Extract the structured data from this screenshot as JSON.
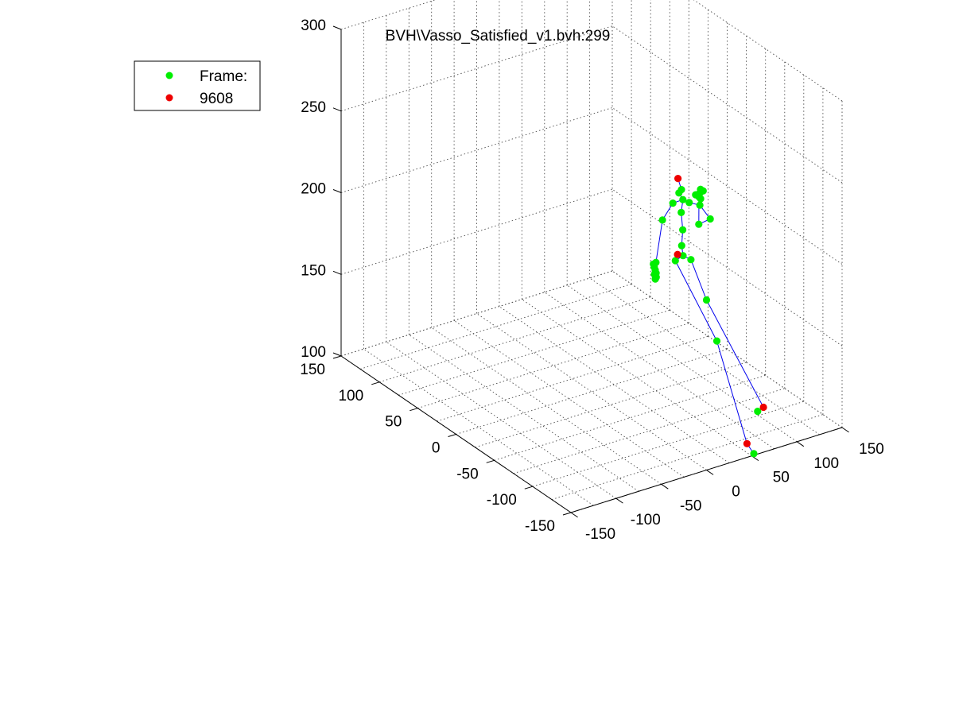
{
  "chart_data": {
    "type": "scatter",
    "title": "BVH\\Vasso_Satisfied_v1.bvh:299",
    "xlim": [
      -150,
      150
    ],
    "ylim": [
      -150,
      150
    ],
    "zlim": [
      100,
      300
    ],
    "x_ticks": [
      -150,
      -100,
      -50,
      0,
      50,
      100,
      150
    ],
    "y_ticks": [
      150,
      100,
      50,
      0,
      -50,
      -100,
      -150
    ],
    "z_ticks": [
      100,
      150,
      200,
      250,
      300
    ],
    "grid": true,
    "legend": {
      "placement": "top-left",
      "entries": [
        {
          "label": "Frame:",
          "color": "#00ee00"
        },
        {
          "label": "9608",
          "color": "#ee0000"
        }
      ]
    },
    "colors": {
      "joint": "#00ee00",
      "end_joint": "#ee0000",
      "bone": "#0000ee"
    },
    "joints": [
      {
        "id": "toe_l",
        "x": 54,
        "y": -148,
        "z": 100,
        "end": false
      },
      {
        "id": "toe_l_end",
        "x": 60,
        "y": -132,
        "z": 100,
        "end": true
      },
      {
        "id": "knee_l",
        "x": 86,
        "y": -62,
        "z": 136,
        "end": false
      },
      {
        "id": "hip_l",
        "x": 113,
        "y": 24,
        "z": 153,
        "end": false
      },
      {
        "id": "toe_r",
        "x": 104,
        "y": -94,
        "z": 100,
        "end": false
      },
      {
        "id": "toe_r_end",
        "x": 113,
        "y": -91,
        "z": 100,
        "end": true
      },
      {
        "id": "knee_r",
        "x": 111,
        "y": -19,
        "z": 143,
        "end": false
      },
      {
        "id": "hip_r",
        "x": 126,
        "y": 19,
        "z": 153,
        "end": false
      },
      {
        "id": "root",
        "x": 119,
        "y": 21,
        "z": 156,
        "end": false
      },
      {
        "id": "root_end",
        "x": 118,
        "y": 27,
        "z": 155,
        "end": true
      },
      {
        "id": "spine",
        "x": 120,
        "y": 24,
        "z": 161,
        "end": false
      },
      {
        "id": "spine1",
        "x": 122,
        "y": 25,
        "z": 170,
        "end": false
      },
      {
        "id": "chest",
        "x": 122,
        "y": 27,
        "z": 180,
        "end": false
      },
      {
        "id": "neck",
        "x": 123,
        "y": 26,
        "z": 188,
        "end": false
      },
      {
        "id": "head",
        "x": 122,
        "y": 30,
        "z": 191,
        "end": false
      },
      {
        "id": "head_b",
        "x": 124,
        "y": 29,
        "z": 193,
        "end": false
      },
      {
        "id": "head_end",
        "x": 121,
        "y": 30,
        "z": 200,
        "end": true
      },
      {
        "id": "shoulder_l",
        "x": 117,
        "y": 32,
        "z": 185,
        "end": false
      },
      {
        "id": "elbow_l",
        "x": 103,
        "y": 29,
        "z": 178,
        "end": false
      },
      {
        "id": "wrist_l",
        "x": 100,
        "y": 34,
        "z": 151,
        "end": false
      },
      {
        "id": "hand_l1",
        "x": 98,
        "y": 35,
        "z": 150,
        "end": false
      },
      {
        "id": "hand_l2",
        "x": 99,
        "y": 35,
        "z": 148,
        "end": false
      },
      {
        "id": "hand_l3",
        "x": 100,
        "y": 35,
        "z": 146,
        "end": false
      },
      {
        "id": "hand_l4",
        "x": 101,
        "y": 35,
        "z": 144,
        "end": false
      },
      {
        "id": "finger_l1",
        "x": 102,
        "y": 36,
        "z": 141,
        "end": false
      },
      {
        "id": "finger_l2",
        "x": 100,
        "y": 36,
        "z": 143,
        "end": false
      },
      {
        "id": "finger_l3",
        "x": 101,
        "y": 36,
        "z": 140,
        "end": false
      },
      {
        "id": "shoulder_r",
        "x": 130,
        "y": 26,
        "z": 185,
        "end": false
      },
      {
        "id": "elbow_r",
        "x": 146,
        "y": 31,
        "z": 179,
        "end": false
      },
      {
        "id": "wrist_r",
        "x": 155,
        "y": 28,
        "z": 170,
        "end": false
      },
      {
        "id": "hand_r1",
        "x": 144,
        "y": 30,
        "z": 168,
        "end": false
      },
      {
        "id": "hand_r2",
        "x": 149,
        "y": 40,
        "z": 182,
        "end": false
      },
      {
        "id": "hand_r3",
        "x": 151,
        "y": 38,
        "z": 181,
        "end": false
      },
      {
        "id": "hand_r4",
        "x": 152,
        "y": 37,
        "z": 180,
        "end": false
      },
      {
        "id": "hand_r5",
        "x": 153,
        "y": 40,
        "z": 182,
        "end": false
      },
      {
        "id": "hand_r6",
        "x": 155,
        "y": 41,
        "z": 182,
        "end": false
      },
      {
        "id": "hand_r7",
        "x": 157,
        "y": 43,
        "z": 183,
        "end": false
      },
      {
        "id": "hand_r8",
        "x": 159,
        "y": 42,
        "z": 182,
        "end": false
      }
    ],
    "bones": [
      [
        "toe_l",
        "toe_l_end"
      ],
      [
        "toe_l_end",
        "knee_l"
      ],
      [
        "knee_l",
        "hip_l"
      ],
      [
        "toe_r",
        "toe_r_end"
      ],
      [
        "toe_r_end",
        "knee_r"
      ],
      [
        "knee_r",
        "hip_r"
      ],
      [
        "hip_l",
        "root"
      ],
      [
        "root",
        "hip_r"
      ],
      [
        "root",
        "spine"
      ],
      [
        "spine",
        "spine1"
      ],
      [
        "spine1",
        "chest"
      ],
      [
        "chest",
        "neck"
      ],
      [
        "neck",
        "head"
      ],
      [
        "head",
        "head_b"
      ],
      [
        "head_b",
        "head_end"
      ],
      [
        "neck",
        "shoulder_l"
      ],
      [
        "shoulder_l",
        "elbow_l"
      ],
      [
        "elbow_l",
        "wrist_l"
      ],
      [
        "neck",
        "shoulder_r"
      ],
      [
        "shoulder_r",
        "elbow_r"
      ],
      [
        "elbow_r",
        "wrist_r"
      ],
      [
        "wrist_r",
        "hand_r1"
      ],
      [
        "hand_r1",
        "hand_r3"
      ]
    ]
  }
}
